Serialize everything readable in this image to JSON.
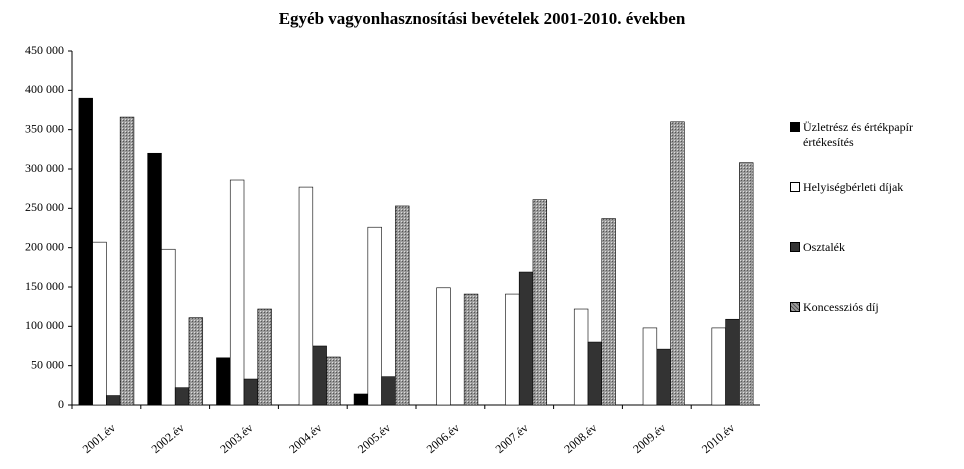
{
  "chart_data": {
    "type": "bar",
    "title": "Egyéb vagyonhasznosítási bevételek 2001-2010. években",
    "categories": [
      "2001.év",
      "2002.év",
      "2003.év",
      "2004.év",
      "2005.év",
      "2006.év",
      "2007.év",
      "2008.év",
      "2009.év",
      "2010.év"
    ],
    "series": [
      {
        "name": "Üzletrész és értékpapír értékesítés",
        "color": "#000000",
        "values": [
          390000,
          320000,
          60000,
          0,
          14000,
          0,
          0,
          0,
          0,
          0
        ]
      },
      {
        "name": "Helyiségbérleti díjak",
        "color": "#ffffff",
        "values": [
          207000,
          198000,
          286000,
          277000,
          226000,
          149000,
          141000,
          122000,
          98000,
          98000
        ]
      },
      {
        "name": "Osztalék",
        "color": "#333333",
        "values": [
          12000,
          22000,
          33000,
          75000,
          36000,
          0,
          169000,
          80000,
          71000,
          109000
        ]
      },
      {
        "name": "Koncessziós díj",
        "color": "#9a9a9a",
        "values": [
          366000,
          111000,
          122000,
          61000,
          253000,
          141000,
          261000,
          237000,
          360000,
          308000
        ]
      }
    ],
    "ylim": [
      0,
      450000
    ],
    "yticks": [
      0,
      {
        "value": 50000,
        "label": "50 000"
      },
      {
        "value": 100000,
        "label": "100 000"
      },
      {
        "value": 150000,
        "label": "150 000"
      },
      {
        "value": 200000,
        "label": "200 000"
      },
      {
        "value": 250000,
        "label": "250 000"
      },
      {
        "value": 300000,
        "label": "300 000"
      },
      {
        "value": 350000,
        "label": "350 000"
      },
      {
        "value": 400000,
        "label": "400 000"
      },
      {
        "value": 450000,
        "label": "450 000"
      }
    ],
    "legend": "right",
    "grid": false
  }
}
